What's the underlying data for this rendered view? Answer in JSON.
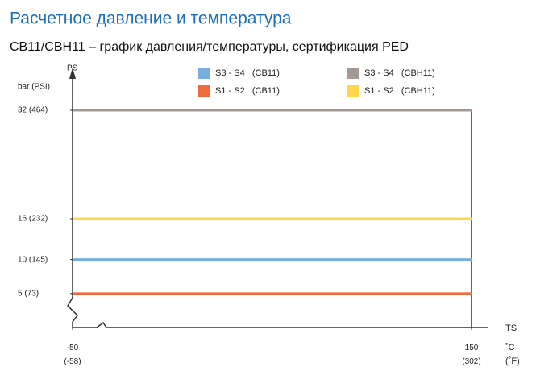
{
  "chart_data": {
    "type": "line",
    "title": "Расчетное давление и температура",
    "subtitle": "CB11/CBH11 – график давления/температуры, сертификация PED",
    "y_label": "PS",
    "y_unit": "bar (PSI)",
    "x_label": "TS",
    "x_unit": "˚C (˚F)",
    "xlim": [
      -50,
      150
    ],
    "xticks": [
      {
        "value": -50,
        "label": "-50 (-58)"
      },
      {
        "value": 150,
        "label": "150 (302)"
      }
    ],
    "ylim": [
      0,
      32
    ],
    "yticks": [
      {
        "value": 5,
        "label": "5 (73)"
      },
      {
        "value": 10,
        "label": "10 (145)"
      },
      {
        "value": 16,
        "label": "16 (232)"
      },
      {
        "value": 32,
        "label": "32 (464)"
      }
    ],
    "grid": false,
    "series": [
      {
        "name": "S3 - S4   (CB11)",
        "color": "#7aaee0",
        "x": [
          -50,
          150
        ],
        "values": [
          10,
          10
        ]
      },
      {
        "name": "S1 - S2   (CB11)",
        "color": "#f26b3a",
        "x": [
          -50,
          150
        ],
        "values": [
          5,
          5
        ]
      },
      {
        "name": "S3 - S4   (CBH11)",
        "color": "#a49a95",
        "x": [
          -50,
          150
        ],
        "values": [
          32,
          32
        ]
      },
      {
        "name": "S1 - S2   (CBH11)",
        "color": "#fcd84a",
        "x": [
          -50,
          150
        ],
        "values": [
          16,
          16
        ]
      }
    ]
  }
}
